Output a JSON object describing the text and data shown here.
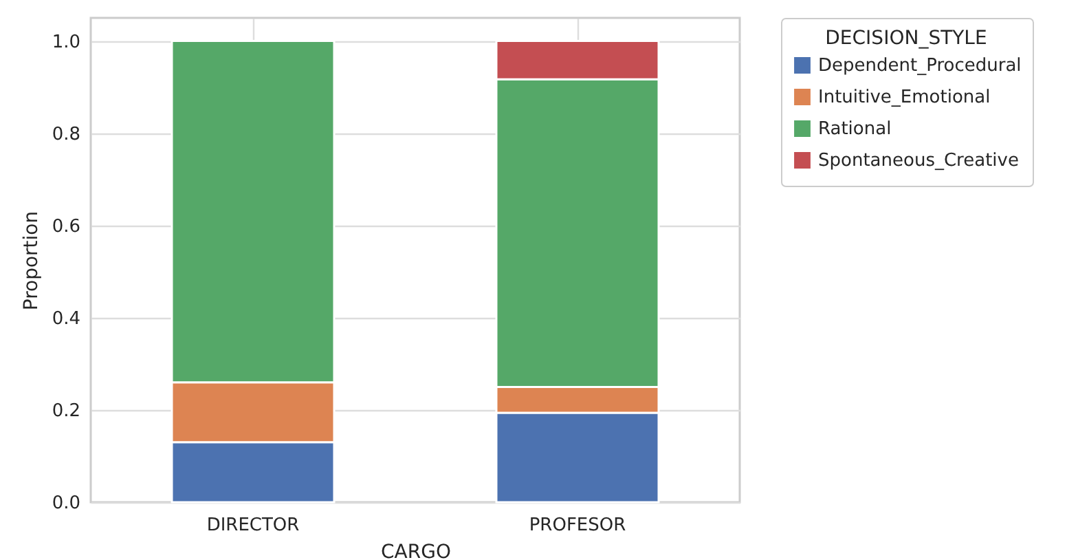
{
  "chart_data": {
    "type": "bar",
    "stacked": true,
    "xlabel": "CARGO",
    "ylabel": "Proportion",
    "legend_title": "DECISION_STYLE",
    "legend": "top right",
    "grid": true,
    "categories": [
      "DIRECTOR",
      "PROFESOR"
    ],
    "ylim": [
      0,
      1.05
    ],
    "yticks": [
      {
        "value": 0,
        "label": "0.0"
      },
      {
        "value": 0.2,
        "label": "0.2"
      },
      {
        "value": 0.4,
        "label": "0.4"
      },
      {
        "value": 0.6,
        "label": "0.6"
      },
      {
        "value": 0.8,
        "label": "0.8"
      },
      {
        "value": 1,
        "label": "1.0"
      }
    ],
    "series": [
      {
        "name": "Dependent_Procedural",
        "color": "#4c72b0",
        "values": [
          0.13,
          0.194
        ]
      },
      {
        "name": "Intuitive_Emotional",
        "color": "#dd8452",
        "values": [
          0.13,
          0.056
        ]
      },
      {
        "name": "Rational",
        "color": "#55a868",
        "values": [
          0.74,
          0.667
        ]
      },
      {
        "name": "Spontaneous_Creative",
        "color": "#c44e52",
        "values": [
          null,
          0.083
        ]
      }
    ]
  }
}
